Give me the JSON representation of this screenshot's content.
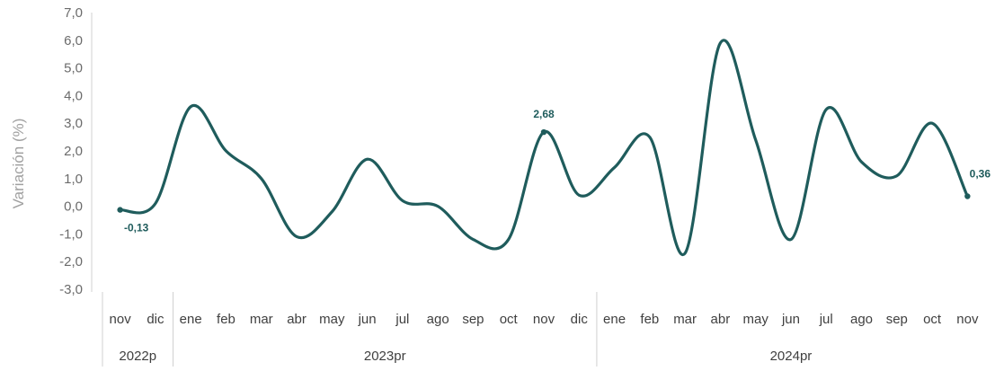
{
  "chart_data": {
    "type": "line",
    "title": "",
    "xlabel": "",
    "ylabel": "Variación (%)",
    "ylim": [
      -3.0,
      7.0
    ],
    "y_ticks": [
      "7,0",
      "6,0",
      "5,0",
      "4,0",
      "3,0",
      "2,0",
      "1,0",
      "0,0",
      "-1,0",
      "-2,0",
      "-3,0"
    ],
    "y_tick_values": [
      7,
      6,
      5,
      4,
      3,
      2,
      1,
      0,
      -1,
      -2,
      -3
    ],
    "grid": false,
    "legend": "none",
    "line_color": "#1f5c5c",
    "categories": [
      "nov",
      "dic",
      "ene",
      "feb",
      "mar",
      "abr",
      "may",
      "jun",
      "jul",
      "ago",
      "sep",
      "oct",
      "nov",
      "dic",
      "ene",
      "feb",
      "mar",
      "abr",
      "may",
      "jun",
      "jul",
      "ago",
      "sep",
      "oct",
      "nov"
    ],
    "year_groups": [
      {
        "label": "2022p",
        "start": 0,
        "end": 1
      },
      {
        "label": "2023pr",
        "start": 2,
        "end": 13
      },
      {
        "label": "2024pr",
        "start": 14,
        "end": 24
      }
    ],
    "series": [
      {
        "values": [
          -0.13,
          0.1,
          3.6,
          2.0,
          1.0,
          -1.1,
          -0.2,
          1.7,
          0.2,
          0.0,
          -1.2,
          -1.2,
          2.68,
          0.4,
          1.4,
          2.5,
          -1.7,
          5.9,
          2.4,
          -1.2,
          3.5,
          1.6,
          1.1,
          3.0,
          0.36
        ]
      }
    ],
    "annotations": [
      {
        "index": 0,
        "text": "-0,13"
      },
      {
        "index": 12,
        "text": "2,68"
      },
      {
        "index": 24,
        "text": "0,36"
      }
    ]
  }
}
